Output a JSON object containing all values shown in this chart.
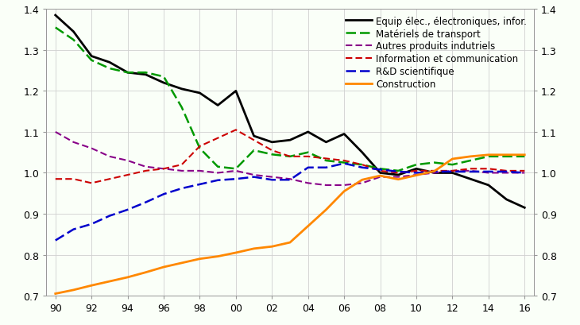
{
  "years": [
    1990,
    1991,
    1992,
    1993,
    1994,
    1995,
    1996,
    1997,
    1998,
    1999,
    2000,
    2001,
    2002,
    2003,
    2004,
    2005,
    2006,
    2007,
    2008,
    2009,
    2010,
    2011,
    2012,
    2013,
    2014,
    2015,
    2016
  ],
  "equip_elec": [
    1.385,
    1.345,
    1.285,
    1.27,
    1.245,
    1.24,
    1.22,
    1.205,
    1.195,
    1.165,
    1.2,
    1.09,
    1.075,
    1.08,
    1.1,
    1.075,
    1.095,
    1.05,
    1.0,
    0.995,
    1.01,
    1.0,
    1.0,
    0.985,
    0.97,
    0.935,
    0.915
  ],
  "materiels_transport": [
    1.355,
    1.325,
    1.275,
    1.255,
    1.245,
    1.245,
    1.235,
    1.16,
    1.06,
    1.015,
    1.01,
    1.055,
    1.045,
    1.04,
    1.05,
    1.03,
    1.025,
    1.02,
    1.01,
    1.005,
    1.02,
    1.025,
    1.02,
    1.03,
    1.04,
    1.04,
    1.04
  ],
  "autres_produits": [
    1.1,
    1.075,
    1.06,
    1.04,
    1.03,
    1.015,
    1.01,
    1.005,
    1.005,
    1.0,
    1.005,
    0.995,
    0.99,
    0.985,
    0.975,
    0.97,
    0.97,
    0.975,
    0.99,
    0.99,
    0.995,
    1.0,
    1.005,
    1.005,
    1.0,
    1.0,
    1.0
  ],
  "info_comm": [
    0.985,
    0.985,
    0.975,
    0.985,
    0.995,
    1.005,
    1.01,
    1.02,
    1.065,
    1.085,
    1.105,
    1.08,
    1.055,
    1.04,
    1.04,
    1.035,
    1.03,
    1.02,
    1.005,
    1.0,
    1.005,
    1.005,
    1.005,
    1.01,
    1.01,
    1.005,
    1.005
  ],
  "rd_scientifique": [
    0.835,
    0.862,
    0.875,
    0.895,
    0.91,
    0.928,
    0.948,
    0.962,
    0.972,
    0.982,
    0.985,
    0.99,
    0.983,
    0.983,
    1.013,
    1.013,
    1.023,
    1.013,
    1.008,
    1.003,
    1.0,
    1.003,
    1.003,
    1.003,
    1.003,
    1.003,
    1.0
  ],
  "construction": [
    0.705,
    0.714,
    0.725,
    0.735,
    0.745,
    0.757,
    0.77,
    0.78,
    0.79,
    0.796,
    0.805,
    0.815,
    0.82,
    0.83,
    0.87,
    0.91,
    0.955,
    0.983,
    0.993,
    0.984,
    0.994,
    1.004,
    1.034,
    1.04,
    1.044,
    1.044,
    1.044
  ],
  "ylim": [
    0.7,
    1.4
  ],
  "yticks": [
    0.7,
    0.8,
    0.9,
    1.0,
    1.1,
    1.2,
    1.3,
    1.4
  ],
  "xtick_positions": [
    90,
    92,
    94,
    96,
    98,
    100,
    102,
    104,
    106,
    108,
    110,
    112,
    114,
    116
  ],
  "xtick_labels": [
    "90",
    "92",
    "94",
    "96",
    "98",
    "00",
    "02",
    "04",
    "06",
    "08",
    "10",
    "12",
    "14",
    "16"
  ],
  "xlim": [
    89.5,
    116.5
  ],
  "legend_labels": [
    "Equip élec., électroniques, infor.",
    "Matériels de transport",
    "Autres produits indutriels",
    "Information et communication",
    "R&D scientifique",
    "Construction"
  ],
  "colors": [
    "#000000",
    "#009900",
    "#880088",
    "#cc0000",
    "#0000cc",
    "#ff8800"
  ],
  "dashes": [
    null,
    [
      5,
      2
    ],
    [
      4,
      2
    ],
    [
      4,
      2
    ],
    [
      5,
      2
    ],
    null
  ],
  "linewidths": [
    2.0,
    1.8,
    1.5,
    1.5,
    1.8,
    2.0
  ],
  "grid_color": "#d0d0d0",
  "bg_color": "#fafff8",
  "plot_bg": "#ffffff",
  "font_size": 9,
  "legend_font_size": 8.5
}
